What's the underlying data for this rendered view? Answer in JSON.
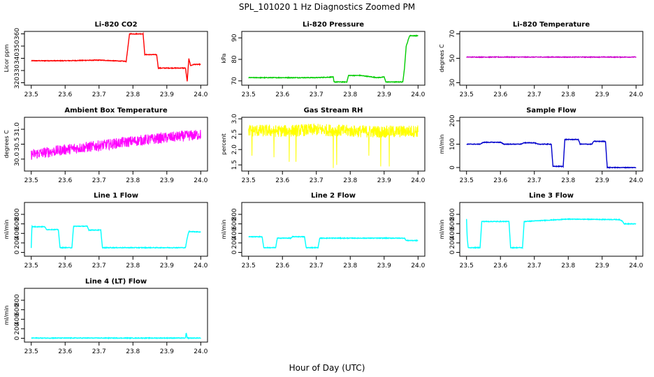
{
  "figure": {
    "title": "SPL_101020  1 Hz Diagnostics Zoomed PM",
    "xlabel": "Hour of Day (UTC)"
  },
  "chart_data": [
    {
      "type": "line",
      "title": "Li-820 CO2",
      "ylabel": "Licor ppm",
      "color": "#ff0000",
      "xlim": [
        23.48,
        24.02
      ],
      "ylim": [
        318,
        362
      ],
      "xticks": [
        "23.5",
        "23.6",
        "23.7",
        "23.8",
        "23.9",
        "24.0"
      ],
      "yticks": [
        "320",
        "330",
        "340",
        "350",
        "360"
      ],
      "series": [
        {
          "x": [
            23.5,
            23.6,
            23.7,
            23.78,
            23.79,
            23.83,
            23.835,
            23.87,
            23.875,
            23.955,
            23.96,
            23.965,
            23.97,
            23.98,
            24.0
          ],
          "y": [
            338,
            338,
            338.5,
            337.5,
            360,
            360,
            343,
            343,
            332,
            332,
            321,
            340,
            334,
            335,
            335
          ]
        }
      ]
    },
    {
      "type": "line",
      "title": "Li-820 Pressure",
      "ylabel": "kPa",
      "color": "#00cc00",
      "xlim": [
        23.48,
        24.02
      ],
      "ylim": [
        68,
        93
      ],
      "xticks": [
        "23.5",
        "23.6",
        "23.7",
        "23.8",
        "23.9",
        "24.0"
      ],
      "yticks": [
        "70",
        "80",
        "90"
      ],
      "series": [
        {
          "x": [
            23.5,
            23.7,
            23.75,
            23.752,
            23.79,
            23.795,
            23.83,
            23.88,
            23.9,
            23.905,
            23.955,
            23.96,
            23.965,
            23.975,
            24.0
          ],
          "y": [
            71.5,
            71.5,
            71.8,
            69.5,
            69.5,
            72.5,
            72.5,
            71.5,
            71.8,
            69.5,
            69.5,
            76,
            86,
            91,
            91
          ]
        }
      ]
    },
    {
      "type": "line",
      "title": "Li-820 Temperature",
      "ylabel": "degrees C",
      "color": "#cc00cc",
      "xlim": [
        23.48,
        24.02
      ],
      "ylim": [
        28,
        72
      ],
      "xticks": [
        "23.5",
        "23.6",
        "23.7",
        "23.8",
        "23.9",
        "24.0"
      ],
      "yticks": [
        "30",
        "50",
        "70"
      ],
      "series": [
        {
          "x": [
            23.5,
            24.0
          ],
          "y": [
            51,
            51
          ]
        }
      ]
    },
    {
      "type": "line",
      "title": "Ambient Box Temperature",
      "ylabel": "degrees C",
      "color": "#ff00ff",
      "xlim": [
        23.48,
        24.02
      ],
      "ylim": [
        29.6,
        31.4
      ],
      "xticks": [
        "23.5",
        "23.6",
        "23.7",
        "23.8",
        "23.9",
        "24.0"
      ],
      "yticks": [
        "30.0",
        "30.5",
        "31.0"
      ],
      "series": [
        {
          "x": [
            23.5,
            23.6,
            23.7,
            23.8,
            23.9,
            24.0
          ],
          "y": [
            30.15,
            30.32,
            30.45,
            30.6,
            30.72,
            30.82
          ],
          "noise": 0.18
        }
      ]
    },
    {
      "type": "line",
      "title": "Gas Stream RH",
      "ylabel": "percent",
      "color": "#ffff00",
      "xlim": [
        23.48,
        24.02
      ],
      "ylim": [
        1.3,
        3.05
      ],
      "xticks": [
        "23.5",
        "23.6",
        "23.7",
        "23.8",
        "23.9",
        "24.0"
      ],
      "yticks": [
        "1.5",
        "2.0",
        "2.5",
        "3.0"
      ],
      "series": [
        {
          "x": [
            23.5,
            23.6,
            23.7,
            23.8,
            23.9,
            24.0
          ],
          "y": [
            2.62,
            2.6,
            2.65,
            2.6,
            2.58,
            2.6
          ],
          "noise": 0.2,
          "spikes": [
            [
              23.51,
              1.8
            ],
            [
              23.575,
              1.75
            ],
            [
              23.62,
              1.6
            ],
            [
              23.64,
              1.6
            ],
            [
              23.75,
              1.4
            ],
            [
              23.76,
              1.5
            ],
            [
              23.855,
              1.8
            ],
            [
              23.89,
              1.45
            ],
            [
              23.915,
              1.45
            ]
          ]
        }
      ]
    },
    {
      "type": "line",
      "title": "Sample Flow",
      "ylabel": "ml/min",
      "color": "#0000cc",
      "xlim": [
        23.48,
        24.02
      ],
      "ylim": [
        -15,
        215
      ],
      "xticks": [
        "23.5",
        "23.6",
        "23.7",
        "23.8",
        "23.9",
        "24.0"
      ],
      "yticks": [
        "0",
        "100",
        "200"
      ],
      "series": [
        {
          "x": [
            23.5,
            23.54,
            23.55,
            23.6,
            23.61,
            23.66,
            23.67,
            23.7,
            23.71,
            23.75,
            23.755,
            23.785,
            23.79,
            23.83,
            23.835,
            23.87,
            23.875,
            23.91,
            23.915,
            24.0
          ],
          "y": [
            100,
            100,
            108,
            108,
            100,
            100,
            106,
            106,
            100,
            100,
            5,
            5,
            120,
            120,
            100,
            100,
            112,
            112,
            0,
            0
          ]
        }
      ]
    },
    {
      "type": "line",
      "title": "Line 1 Flow",
      "ylabel": "ml/min",
      "color": "#00ffff",
      "xlim": [
        23.48,
        24.02
      ],
      "ylim": [
        -80,
        1050
      ],
      "xticks": [
        "23.5",
        "23.6",
        "23.7",
        "23.8",
        "23.9",
        "24.0"
      ],
      "yticks": [
        "0",
        "200",
        "400",
        "600",
        "800"
      ],
      "series": [
        {
          "x": [
            23.5,
            23.502,
            23.54,
            23.545,
            23.58,
            23.585,
            23.62,
            23.625,
            23.665,
            23.67,
            23.705,
            23.71,
            23.955,
            23.96,
            23.965,
            24.0
          ],
          "y": [
            100,
            540,
            540,
            480,
            480,
            100,
            100,
            550,
            550,
            470,
            470,
            100,
            100,
            300,
            440,
            430
          ]
        }
      ]
    },
    {
      "type": "line",
      "title": "Line 2 Flow",
      "ylabel": "ml/min",
      "color": "#00ffff",
      "xlim": [
        23.48,
        24.02
      ],
      "ylim": [
        -80,
        1050
      ],
      "xticks": [
        "23.5",
        "23.6",
        "23.7",
        "23.8",
        "23.9",
        "24.0"
      ],
      "yticks": [
        "0",
        "200",
        "400",
        "600",
        "800"
      ],
      "series": [
        {
          "x": [
            23.5,
            23.54,
            23.545,
            23.58,
            23.585,
            23.625,
            23.63,
            23.665,
            23.67,
            23.705,
            23.71,
            23.96,
            23.965,
            24.0
          ],
          "y": [
            330,
            330,
            100,
            100,
            300,
            300,
            330,
            330,
            100,
            100,
            300,
            300,
            250,
            250
          ]
        }
      ]
    },
    {
      "type": "line",
      "title": "Line 3 Flow",
      "ylabel": "ml/min",
      "color": "#00ffff",
      "xlim": [
        23.48,
        24.02
      ],
      "ylim": [
        -80,
        1050
      ],
      "xticks": [
        "23.5",
        "23.6",
        "23.7",
        "23.8",
        "23.9",
        "24.0"
      ],
      "yticks": [
        "0",
        "200",
        "400",
        "600",
        "800"
      ],
      "series": [
        {
          "x": [
            23.5,
            23.502,
            23.505,
            23.54,
            23.545,
            23.625,
            23.63,
            23.665,
            23.67,
            23.8,
            23.95,
            23.96,
            23.965,
            24.0
          ],
          "y": [
            700,
            300,
            100,
            100,
            650,
            650,
            100,
            100,
            650,
            700,
            690,
            660,
            600,
            600
          ]
        }
      ]
    },
    {
      "type": "line",
      "title": "Line 4 (LT) Flow",
      "ylabel": "ml/min",
      "color": "#00ffff",
      "xlim": [
        23.48,
        24.02
      ],
      "ylim": [
        -80,
        1050
      ],
      "xticks": [
        "23.5",
        "23.6",
        "23.7",
        "23.8",
        "23.9",
        "24.0"
      ],
      "yticks": [
        "0",
        "200",
        "400",
        "600",
        "800"
      ],
      "series": [
        {
          "x": [
            23.5,
            23.955,
            23.957,
            23.96,
            24.0
          ],
          "y": [
            5,
            5,
            120,
            5,
            5
          ]
        }
      ]
    }
  ]
}
